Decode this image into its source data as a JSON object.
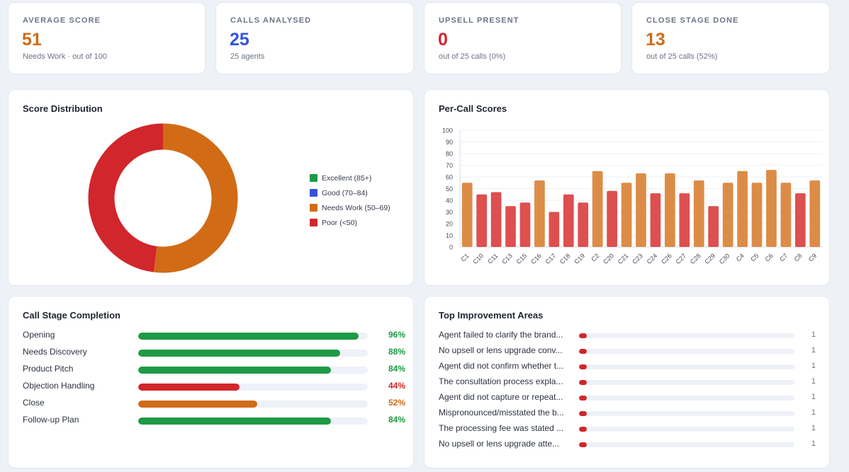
{
  "kpis": [
    {
      "label": "AVERAGE SCORE",
      "value": "51",
      "sub": "Needs Work · out of 100",
      "color": "#d16b16"
    },
    {
      "label": "CALLS ANALYSED",
      "value": "25",
      "sub": "25 agents",
      "color": "#3455d8"
    },
    {
      "label": "UPSELL PRESENT",
      "value": "0",
      "sub": "out of 25 calls (0%)",
      "color": "#d1262b"
    },
    {
      "label": "CLOSE STAGE DONE",
      "value": "13",
      "sub": "out of 25 calls (52%)",
      "color": "#d16b16"
    }
  ],
  "distribution": {
    "title": "Score Distribution",
    "legend": [
      {
        "label": "Excellent (85+)",
        "color": "#1e9a45"
      },
      {
        "label": "Good (70–84)",
        "color": "#3455d8"
      },
      {
        "label": "Needs Work (50–69)",
        "color": "#d16b16"
      },
      {
        "label": "Poor (<50)",
        "color": "#d1262b"
      }
    ]
  },
  "per_call": {
    "title": "Per-Call Scores"
  },
  "chart_data": [
    {
      "type": "pie",
      "donut": true,
      "labels": [
        "Excellent (85+)",
        "Good (70–84)",
        "Needs Work (50–69)",
        "Poor (<50)"
      ],
      "values": [
        0,
        0,
        13,
        12
      ],
      "colors": [
        "#1e9a45",
        "#3455d8",
        "#d16b16",
        "#d1262b"
      ]
    },
    {
      "type": "bar",
      "categories": [
        "C1",
        "C10",
        "C11",
        "C13",
        "C15",
        "C16",
        "C17",
        "C18",
        "C19",
        "C2",
        "C20",
        "C21",
        "C23",
        "C24",
        "C26",
        "C27",
        "C28",
        "C29",
        "C30",
        "C4",
        "C5",
        "C6",
        "C7",
        "C8",
        "C9"
      ],
      "values": [
        55,
        45,
        47,
        35,
        38,
        57,
        30,
        45,
        38,
        65,
        48,
        55,
        63,
        46,
        63,
        46,
        57,
        35,
        55,
        65,
        55,
        66,
        55,
        46,
        57
      ],
      "ylim": [
        0,
        100
      ],
      "yticks": [
        0,
        10,
        20,
        30,
        40,
        50,
        60,
        70,
        80,
        90,
        100
      ],
      "grid": true,
      "colors": {
        "needs_work": "#dc8c46",
        "poor": "#de4f50"
      }
    }
  ],
  "stages": {
    "title": "Call Stage Completion",
    "items": [
      {
        "label": "Opening",
        "value": 96,
        "pct": "96%",
        "color": "#1e9a45"
      },
      {
        "label": "Needs Discovery",
        "value": 88,
        "pct": "88%",
        "color": "#1e9a45"
      },
      {
        "label": "Product Pitch",
        "value": 84,
        "pct": "84%",
        "color": "#1e9a45"
      },
      {
        "label": "Objection Handling",
        "value": 44,
        "pct": "44%",
        "color": "#d1262b"
      },
      {
        "label": "Close",
        "value": 52,
        "pct": "52%",
        "color": "#d16b16"
      },
      {
        "label": "Follow-up Plan",
        "value": 84,
        "pct": "84%",
        "color": "#1e9a45"
      }
    ]
  },
  "improvements": {
    "title": "Top Improvement Areas",
    "color": "#d1262b",
    "max": 1,
    "items": [
      {
        "label": "Agent failed to clarify the brand...",
        "count": 1
      },
      {
        "label": "No upsell or lens upgrade conv...",
        "count": 1
      },
      {
        "label": "Agent did not confirm whether t...",
        "count": 1
      },
      {
        "label": "The consultation process expla...",
        "count": 1
      },
      {
        "label": "Agent did not capture or repeat...",
        "count": 1
      },
      {
        "label": "Mispronounced/misstated the b...",
        "count": 1
      },
      {
        "label": "The processing fee was stated ...",
        "count": 1
      },
      {
        "label": "No upsell or lens upgrade atte...",
        "count": 1
      }
    ]
  }
}
